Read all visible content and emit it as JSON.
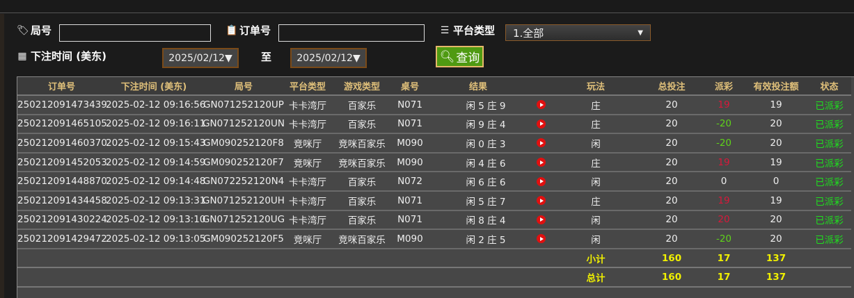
{
  "filters": {
    "round_label": "局号",
    "round_value": "",
    "order_label": "订单号",
    "order_value": "",
    "platform_label": "平台类型",
    "platform_selected": "1.全部",
    "time_label": "下注时间 (美东)",
    "date_from": "2025/02/12▼",
    "to_label": "至",
    "date_to": "2025/02/12▼",
    "query_label": "查询"
  },
  "table": {
    "headers": [
      "订单号",
      "下注时间 (美东)",
      "局号",
      "平台类型",
      "游戏类型",
      "桌号",
      "结果",
      "",
      "玩法",
      "总投注",
      "派彩",
      "有效投注额",
      "状态"
    ],
    "rows": [
      {
        "order": "250212091473439",
        "time": "2025-02-12 09:16:56",
        "round": "GN071252120UP",
        "platform": "卡卡湾厅",
        "game": "百家乐",
        "table": "N071",
        "result": "闲 5 庄 9",
        "bet": "庄",
        "total": "20",
        "payout": "19",
        "payout_color": "red",
        "valid": "19",
        "status": "已派彩"
      },
      {
        "order": "250212091465105",
        "time": "2025-02-12 09:16:11",
        "round": "GN071252120UN",
        "platform": "卡卡湾厅",
        "game": "百家乐",
        "table": "N071",
        "result": "闲 9 庄 4",
        "bet": "庄",
        "total": "20",
        "payout": "-20",
        "payout_color": "green",
        "valid": "20",
        "status": "已派彩"
      },
      {
        "order": "250212091460370",
        "time": "2025-02-12 09:15:43",
        "round": "GM090252120F8",
        "platform": "竞咪厅",
        "game": "竞咪百家乐",
        "table": "M090",
        "result": "闲 0 庄 3",
        "bet": "闲",
        "total": "20",
        "payout": "-20",
        "payout_color": "green",
        "valid": "20",
        "status": "已派彩"
      },
      {
        "order": "250212091452053",
        "time": "2025-02-12 09:14:59",
        "round": "GM090252120F7",
        "platform": "竞咪厅",
        "game": "竞咪百家乐",
        "table": "M090",
        "result": "闲 4 庄 6",
        "bet": "庄",
        "total": "20",
        "payout": "19",
        "payout_color": "red",
        "valid": "19",
        "status": "已派彩"
      },
      {
        "order": "250212091448870",
        "time": "2025-02-12 09:14:48",
        "round": "GN072252120N4",
        "platform": "卡卡湾厅",
        "game": "百家乐",
        "table": "N072",
        "result": "闲 6 庄 6",
        "bet": "闲",
        "total": "20",
        "payout": "0",
        "payout_color": "white",
        "valid": "0",
        "status": "已派彩"
      },
      {
        "order": "250212091434458",
        "time": "2025-02-12 09:13:31",
        "round": "GN071252120UH",
        "platform": "卡卡湾厅",
        "game": "百家乐",
        "table": "N071",
        "result": "闲 5 庄 7",
        "bet": "庄",
        "total": "20",
        "payout": "19",
        "payout_color": "red",
        "valid": "19",
        "status": "已派彩"
      },
      {
        "order": "250212091430224",
        "time": "2025-02-12 09:13:10",
        "round": "GN071252120UG",
        "platform": "卡卡湾厅",
        "game": "百家乐",
        "table": "N071",
        "result": "闲 8 庄 4",
        "bet": "闲",
        "total": "20",
        "payout": "20",
        "payout_color": "red",
        "valid": "20",
        "status": "已派彩"
      },
      {
        "order": "250212091429472",
        "time": "2025-02-12 09:13:05",
        "round": "GM090252120F5",
        "platform": "竞咪厅",
        "game": "竞咪百家乐",
        "table": "M090",
        "result": "闲 2 庄 5",
        "bet": "闲",
        "total": "20",
        "payout": "-20",
        "payout_color": "green",
        "valid": "20",
        "status": "已派彩"
      }
    ],
    "subtotal": {
      "label": "小计",
      "total": "160",
      "payout": "17",
      "valid": "137"
    },
    "grandtotal": {
      "label": "总计",
      "total": "160",
      "payout": "17",
      "valid": "137"
    }
  }
}
